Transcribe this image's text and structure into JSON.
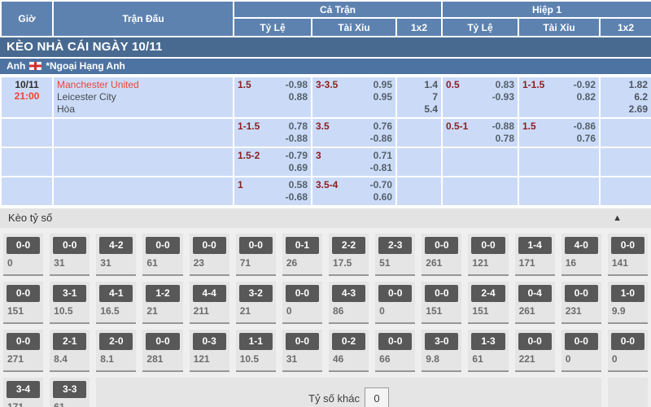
{
  "header": {
    "time_col": "Giờ",
    "match_col": "Trận Đấu",
    "full_match": "Cả Trận",
    "first_half": "Hiệp 1",
    "sub": [
      "Tỷ Lệ",
      "Tài Xỉu",
      "1x2"
    ]
  },
  "section_title": "KÈO NHÀ CÁI NGÀY 10/11",
  "league": {
    "country": "Anh",
    "flag": "england-flag",
    "name": "*Ngoại Hạng Anh"
  },
  "match": {
    "date": "10/11",
    "time": "21:00",
    "home": "Manchester United",
    "away": "Leicester City",
    "draw_label": "Hòa"
  },
  "odds_rows": [
    {
      "ft_hdp": "1.5",
      "ft_hdp_odds": [
        "-0.98",
        "0.88"
      ],
      "ft_ou": "3-3.5",
      "ft_ou_odds": [
        "0.95",
        "0.95"
      ],
      "ft_1x2": [
        "1.4",
        "7",
        "5.4"
      ],
      "h1_hdp": "0.5",
      "h1_hdp_odds": [
        "0.83",
        "-0.93"
      ],
      "h1_ou": "1-1.5",
      "h1_ou_odds": [
        "-0.92",
        "0.82"
      ],
      "h1_1x2": [
        "1.82",
        "6.2",
        "2.69"
      ]
    },
    {
      "ft_hdp": "1-1.5",
      "ft_hdp_odds": [
        "0.78",
        "-0.88"
      ],
      "ft_ou": "3.5",
      "ft_ou_odds": [
        "0.76",
        "-0.86"
      ],
      "ft_1x2": [],
      "h1_hdp": "0.5-1",
      "h1_hdp_odds": [
        "-0.88",
        "0.78"
      ],
      "h1_ou": "1.5",
      "h1_ou_odds": [
        "-0.86",
        "0.76"
      ],
      "h1_1x2": []
    },
    {
      "ft_hdp": "1.5-2",
      "ft_hdp_odds": [
        "-0.79",
        "0.69"
      ],
      "ft_ou": "3",
      "ft_ou_odds": [
        "0.71",
        "-0.81"
      ],
      "ft_1x2": [],
      "h1_hdp": "",
      "h1_hdp_odds": [],
      "h1_ou": "",
      "h1_ou_odds": [],
      "h1_1x2": []
    },
    {
      "ft_hdp": "1",
      "ft_hdp_odds": [
        "0.58",
        "-0.68"
      ],
      "ft_ou": "3.5-4",
      "ft_ou_odds": [
        "-0.70",
        "0.60"
      ],
      "ft_1x2": [],
      "h1_hdp": "",
      "h1_hdp_odds": [],
      "h1_ou": "",
      "h1_ou_odds": [],
      "h1_1x2": []
    }
  ],
  "score_section": {
    "title": "Kèo tỷ số",
    "collapse_icon": "▲",
    "other_label": "Tỷ số khác",
    "other_value": "0",
    "rows": [
      [
        {
          "score": "0-0",
          "odds": "0"
        },
        {
          "score": "0-0",
          "odds": "31"
        },
        {
          "score": "4-2",
          "odds": "31"
        },
        {
          "score": "0-0",
          "odds": "61"
        },
        {
          "score": "0-0",
          "odds": "23"
        },
        {
          "score": "0-0",
          "odds": "71"
        },
        {
          "score": "0-1",
          "odds": "26"
        },
        {
          "score": "2-2",
          "odds": "17.5"
        },
        {
          "score": "2-3",
          "odds": "51"
        },
        {
          "score": "0-0",
          "odds": "261"
        },
        {
          "score": "0-0",
          "odds": "121"
        },
        {
          "score": "1-4",
          "odds": "171"
        },
        {
          "score": "4-0",
          "odds": "16"
        },
        {
          "score": "0-0",
          "odds": "141"
        }
      ],
      [
        {
          "score": "0-0",
          "odds": "151"
        },
        {
          "score": "3-1",
          "odds": "10.5"
        },
        {
          "score": "4-1",
          "odds": "16.5"
        },
        {
          "score": "1-2",
          "odds": "21"
        },
        {
          "score": "4-4",
          "odds": "211"
        },
        {
          "score": "3-2",
          "odds": "21"
        },
        {
          "score": "0-0",
          "odds": "0"
        },
        {
          "score": "4-3",
          "odds": "86"
        },
        {
          "score": "0-0",
          "odds": "0"
        },
        {
          "score": "0-0",
          "odds": "151"
        },
        {
          "score": "2-4",
          "odds": "151"
        },
        {
          "score": "0-4",
          "odds": "261"
        },
        {
          "score": "0-0",
          "odds": "231"
        },
        {
          "score": "1-0",
          "odds": "9.9"
        }
      ],
      [
        {
          "score": "0-0",
          "odds": "271"
        },
        {
          "score": "2-1",
          "odds": "8.4"
        },
        {
          "score": "2-0",
          "odds": "8.1"
        },
        {
          "score": "0-0",
          "odds": "281"
        },
        {
          "score": "0-3",
          "odds": "121"
        },
        {
          "score": "1-1",
          "odds": "10.5"
        },
        {
          "score": "0-0",
          "odds": "31"
        },
        {
          "score": "0-2",
          "odds": "46"
        },
        {
          "score": "0-0",
          "odds": "66"
        },
        {
          "score": "3-0",
          "odds": "9.8"
        },
        {
          "score": "1-3",
          "odds": "61"
        },
        {
          "score": "0-0",
          "odds": "221"
        },
        {
          "score": "0-0",
          "odds": "0"
        },
        {
          "score": "0-0",
          "odds": "0"
        }
      ],
      [
        {
          "score": "3-4",
          "odds": "171"
        },
        {
          "score": "3-3",
          "odds": "61"
        }
      ]
    ]
  },
  "colors": {
    "header_blue": "#5d82b0",
    "title_bar_blue": "#486a90",
    "league_bar_blue": "#4d73a2",
    "row_light_blue": "#cbdbf7",
    "handicap_dark_red": "#8f1d1d",
    "team_time_red": "#ee4435",
    "score_button_gray": "#585858"
  }
}
